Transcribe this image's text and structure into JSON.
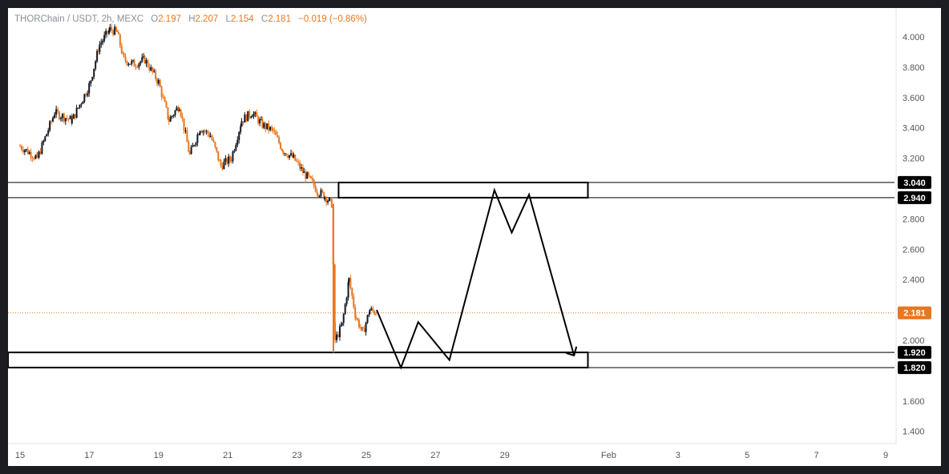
{
  "legend": {
    "symbol": "THORChain / USDT, 2h, MEXC",
    "o_label": "O",
    "o_value": "2.197",
    "h_label": "H",
    "h_value": "2.207",
    "l_label": "L",
    "l_value": "2.154",
    "c_label": "C",
    "c_value": "2.181",
    "change": "−0.019 (−0.86%)"
  },
  "colors": {
    "up": "#131722",
    "down": "#e8771f",
    "last_price": "#e8771f",
    "tag_bg": "#000000",
    "zone_stroke": "#000000",
    "projection": "#000000"
  },
  "chart_data": {
    "type": "candlestick",
    "title": "THORChain / USDT, 2h, MEXC",
    "xlabel": "",
    "ylabel": "",
    "ylim": [
      1.3,
      4.1
    ],
    "y_ticks": [
      "4.000",
      "3.800",
      "3.600",
      "3.400",
      "3.200",
      "2.800",
      "2.600",
      "2.400",
      "2.000",
      "1.600",
      "1.400"
    ],
    "x_ticks": [
      {
        "label": "15",
        "day": 15
      },
      {
        "label": "17",
        "day": 17
      },
      {
        "label": "19",
        "day": 19
      },
      {
        "label": "21",
        "day": 21
      },
      {
        "label": "23",
        "day": 23
      },
      {
        "label": "25",
        "day": 25
      },
      {
        "label": "27",
        "day": 27
      },
      {
        "label": "29",
        "day": 29
      },
      {
        "label": "Feb",
        "day": 32
      },
      {
        "label": "3",
        "day": 34
      },
      {
        "label": "5",
        "day": 36
      },
      {
        "label": "7",
        "day": 38
      },
      {
        "label": "9",
        "day": 40
      }
    ],
    "series": [
      {
        "x": [
          15.0,
          15.5,
          16.0,
          16.5,
          17.0,
          17.3,
          17.6,
          17.8,
          18.0,
          18.3,
          18.6,
          19.0,
          19.3,
          19.6,
          19.9,
          20.2,
          20.5,
          20.8,
          21.1,
          21.4,
          21.7,
          22.0,
          22.3,
          22.6,
          22.9,
          23.2,
          23.4,
          23.6,
          23.8,
          24.0,
          24.1,
          24.3,
          24.5,
          24.7,
          24.9,
          25.1,
          25.3
        ],
        "y": [
          3.28,
          3.2,
          3.5,
          3.45,
          3.68,
          3.95,
          4.05,
          4.03,
          3.85,
          3.82,
          3.85,
          3.7,
          3.45,
          3.55,
          3.22,
          3.4,
          3.35,
          3.15,
          3.2,
          3.45,
          3.5,
          3.42,
          3.38,
          3.25,
          3.2,
          3.1,
          3.05,
          2.98,
          2.95,
          2.9,
          2.0,
          2.1,
          2.4,
          2.15,
          2.05,
          2.2,
          2.181
        ]
      }
    ],
    "last_price": "2.181",
    "zones": [
      {
        "name": "resistance",
        "high": 3.04,
        "low": 2.94,
        "high_label": "3.040",
        "low_label": "2.940"
      },
      {
        "name": "support",
        "high": 1.92,
        "low": 1.82,
        "high_label": "1.920",
        "low_label": "1.820"
      }
    ],
    "projection_path": {
      "x": [
        25.3,
        26.0,
        26.5,
        27.4,
        28.7,
        29.2,
        29.7,
        31.0
      ],
      "y": [
        2.2,
        1.82,
        2.12,
        1.87,
        2.99,
        2.71,
        2.96,
        1.9
      ]
    }
  }
}
